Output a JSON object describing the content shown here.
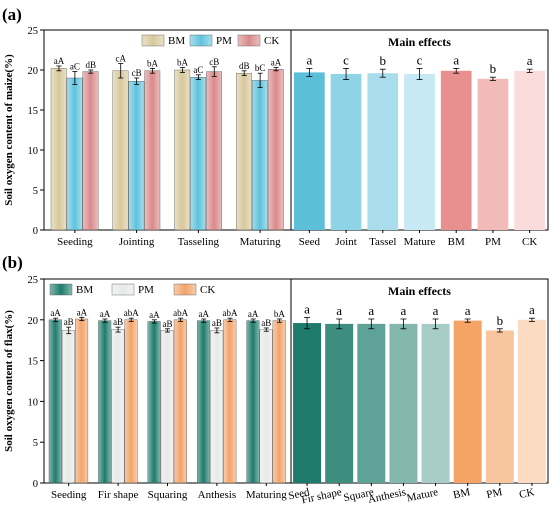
{
  "chart_data": [
    {
      "panel_label": "(a)",
      "type": "bar",
      "ylabel": "Soil oxygen content of maize(%)",
      "ylim": [
        0,
        25
      ],
      "yticks": [
        0,
        5,
        10,
        15,
        20,
        25
      ],
      "legend": {
        "position": "top-right",
        "entries": [
          "BM",
          "PM",
          "CK"
        ],
        "colors": [
          "#D8C89A",
          "#5FC3DD",
          "#D98A8A"
        ]
      },
      "grouped": {
        "categories": [
          "Seeding",
          "Jointing",
          "Tasseling",
          "Maturing"
        ],
        "series": [
          {
            "name": "BM",
            "values": [
              20.2,
              19.9,
              20.0,
              19.6
            ],
            "errors": [
              0.3,
              0.9,
              0.3,
              0.3
            ],
            "labels": [
              "aA",
              "cA",
              "bA",
              "dB"
            ]
          },
          {
            "name": "PM",
            "values": [
              19.0,
              18.6,
              19.1,
              18.7
            ],
            "errors": [
              0.8,
              0.4,
              0.3,
              0.9
            ],
            "labels": [
              "aC",
              "cB",
              "aC",
              "bC"
            ]
          },
          {
            "name": "CK",
            "values": [
              19.8,
              19.9,
              19.8,
              20.1
            ],
            "errors": [
              0.2,
              0.3,
              0.6,
              0.2
            ],
            "labels": [
              "dB",
              "bA",
              "cB",
              "aA"
            ]
          }
        ]
      },
      "main_effects": {
        "title": "Main effects",
        "categories": [
          "Seed",
          "Joint",
          "Tassel",
          "Mature",
          "BM",
          "PM",
          "CK"
        ],
        "values": [
          19.7,
          19.5,
          19.6,
          19.5,
          19.9,
          18.9,
          19.9
        ],
        "errors": [
          0.5,
          0.7,
          0.5,
          0.7,
          0.3,
          0.2,
          0.2
        ],
        "labels": [
          "a",
          "c",
          "b",
          "c",
          "a",
          "b",
          "a"
        ],
        "colors": [
          "#5BBFDA",
          "#8ED3E6",
          "#A9DDEC",
          "#C6E9F3",
          "#E8908F",
          "#F2BBB9",
          "#F9DCDB"
        ]
      }
    },
    {
      "panel_label": "(b)",
      "type": "bar",
      "ylabel": "Soil oxygen content of flax(%)",
      "ylim": [
        0,
        25
      ],
      "yticks": [
        0,
        5,
        10,
        15,
        20,
        25
      ],
      "legend": {
        "position": "top-left",
        "entries": [
          "BM",
          "PM",
          "CK"
        ],
        "colors": [
          "#1E7B6B",
          "#E6EAE8",
          "#F2A46A"
        ]
      },
      "grouped": {
        "categories": [
          "Seeding",
          "Fir shape",
          "Squaring",
          "Anthesis",
          "Maturing"
        ],
        "series": [
          {
            "name": "BM",
            "values": [
              20.0,
              19.9,
              19.8,
              19.9,
              19.9
            ],
            "errors": [
              0.2,
              0.2,
              0.2,
              0.2,
              0.2
            ],
            "labels": [
              "aA",
              "aA",
              "aA",
              "aA",
              "aA"
            ]
          },
          {
            "name": "PM",
            "values": [
              18.7,
              18.8,
              18.7,
              18.7,
              18.8
            ],
            "errors": [
              0.4,
              0.3,
              0.2,
              0.3,
              0.2
            ],
            "labels": [
              "aB",
              "aB",
              "aB",
              "aB",
              "aB"
            ]
          },
          {
            "name": "CK",
            "values": [
              20.1,
              20.0,
              20.0,
              20.0,
              19.9
            ],
            "errors": [
              0.2,
              0.2,
              0.2,
              0.2,
              0.2
            ],
            "labels": [
              "aA",
              "abA",
              "abA",
              "abA",
              "bA"
            ]
          }
        ]
      },
      "main_effects": {
        "title": "Main effects",
        "categories": [
          "Seed",
          "Fir shape",
          "Square",
          "Anthesis",
          "Mature",
          "BM",
          "PM",
          "CK"
        ],
        "values": [
          19.6,
          19.5,
          19.5,
          19.5,
          19.5,
          19.9,
          18.7,
          20.0
        ],
        "errors": [
          0.7,
          0.6,
          0.6,
          0.6,
          0.6,
          0.2,
          0.2,
          0.2
        ],
        "labels": [
          "a",
          "a",
          "a",
          "a",
          "a",
          "a",
          "b",
          "a"
        ],
        "colors": [
          "#1E7B6B",
          "#3E8E80",
          "#5FA398",
          "#84B8AF",
          "#A7CDC6",
          "#F5A466",
          "#F8C69E",
          "#FBDCC2"
        ]
      }
    }
  ]
}
